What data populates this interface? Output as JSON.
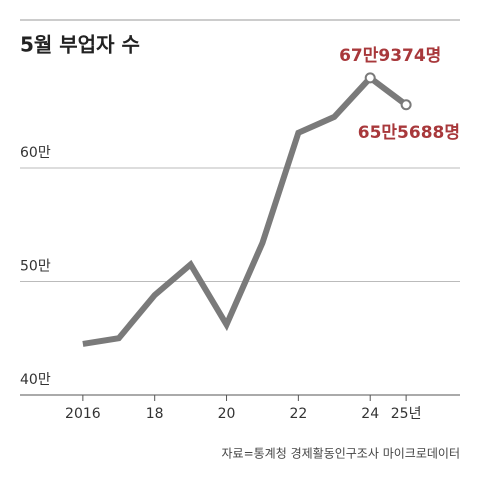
{
  "chart_data": {
    "type": "line",
    "title": "5월 부업자 수",
    "source": "자료=통계청 경제활동인구조사 마이크로데이터",
    "x": [
      2016,
      2017,
      2018,
      2019,
      2020,
      2021,
      2022,
      2023,
      2024,
      2025
    ],
    "values": [
      44.5,
      45.0,
      48.8,
      51.5,
      46.2,
      53.4,
      63.1,
      64.5,
      67.9374,
      65.5688
    ],
    "value_labels": [
      null,
      null,
      null,
      null,
      null,
      null,
      null,
      null,
      "67만9374명",
      "65만5688명"
    ],
    "color": "#7a7a7a",
    "label_color": "#a8383b",
    "xlim": [
      2014.25,
      2026.5
    ],
    "xticks": [
      2016,
      {
        "value": 2018,
        "label": "18"
      },
      {
        "value": 2020,
        "label": "20"
      },
      {
        "value": 2022,
        "label": "22"
      },
      {
        "value": 2024,
        "label": "24"
      },
      {
        "value": 2025,
        "label": "25년"
      }
    ],
    "ylim": [
      40,
      70
    ],
    "yticks": [
      {
        "value": 40,
        "label": "40만"
      },
      {
        "value": 50,
        "label": "50만"
      },
      {
        "value": 60,
        "label": "60만"
      }
    ],
    "grid": true
  }
}
